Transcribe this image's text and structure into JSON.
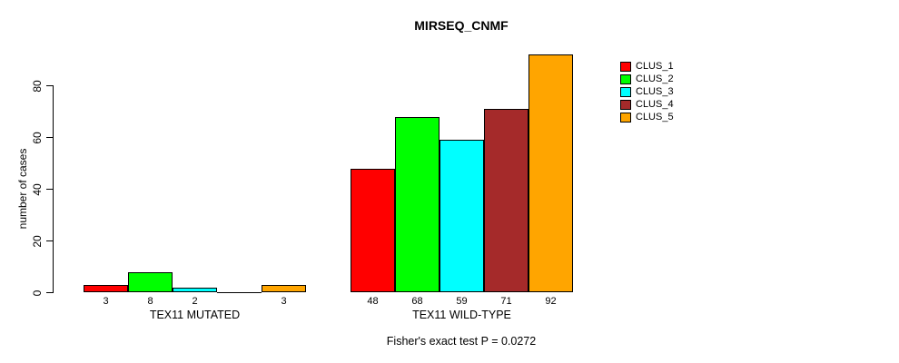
{
  "title": "MIRSEQ_CNMF",
  "chart_data": {
    "type": "bar",
    "title": "MIRSEQ_CNMF",
    "xlabel": "",
    "ylabel": "number of cases",
    "ylim": [
      0,
      92
    ],
    "yticks": [
      0,
      20,
      40,
      60,
      80
    ],
    "grid": false,
    "legend_position": "right",
    "categories": [
      "TEX11 MUTATED",
      "TEX11 WILD-TYPE"
    ],
    "series": [
      {
        "name": "CLUS_1",
        "color": "#FF0000",
        "values": [
          3,
          48
        ]
      },
      {
        "name": "CLUS_2",
        "color": "#00FF00",
        "values": [
          8,
          68
        ]
      },
      {
        "name": "CLUS_3",
        "color": "#00FFFF",
        "values": [
          2,
          59
        ]
      },
      {
        "name": "CLUS_4",
        "color": "#A52A2A",
        "values": [
          0,
          71
        ]
      },
      {
        "name": "CLUS_5",
        "color": "#FFA500",
        "values": [
          3,
          92
        ]
      }
    ],
    "bar_value_labels": [
      [
        "3",
        "8",
        "2",
        "",
        "3"
      ],
      [
        "48",
        "68",
        "59",
        "71",
        "92"
      ]
    ],
    "annotation": "Fisher's exact test P = 0.0272"
  }
}
